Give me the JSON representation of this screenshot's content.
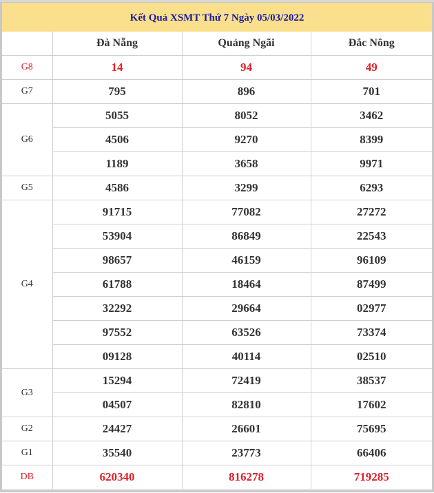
{
  "title": "Kết Quả XSMT Thứ 7 Ngày 05/03/2022",
  "columns": [
    "",
    "Đà Nẵng",
    "Quảng Ngãi",
    "Đắc Nông"
  ],
  "prizes": [
    {
      "label": "G8",
      "highlight": true,
      "rows": [
        [
          "14",
          "94",
          "49"
        ]
      ]
    },
    {
      "label": "G7",
      "rows": [
        [
          "795",
          "896",
          "701"
        ]
      ]
    },
    {
      "label": "G6",
      "rows": [
        [
          "5055",
          "8052",
          "3462"
        ],
        [
          "4506",
          "9270",
          "8399"
        ],
        [
          "1189",
          "3658",
          "9971"
        ]
      ]
    },
    {
      "label": "G5",
      "rows": [
        [
          "4586",
          "3299",
          "6293"
        ]
      ]
    },
    {
      "label": "G4",
      "rows": [
        [
          "91715",
          "77082",
          "27272"
        ],
        [
          "53904",
          "86849",
          "22543"
        ],
        [
          "98657",
          "46159",
          "96109"
        ],
        [
          "61788",
          "18464",
          "87499"
        ],
        [
          "32292",
          "29664",
          "02977"
        ],
        [
          "97552",
          "63526",
          "73374"
        ],
        [
          "09128",
          "40114",
          "02510"
        ]
      ]
    },
    {
      "label": "G3",
      "rows": [
        [
          "15294",
          "72419",
          "38537"
        ],
        [
          "04507",
          "82810",
          "17602"
        ]
      ]
    },
    {
      "label": "G2",
      "rows": [
        [
          "24427",
          "26601",
          "75695"
        ]
      ]
    },
    {
      "label": "G1",
      "rows": [
        [
          "35540",
          "23773",
          "66406"
        ]
      ]
    },
    {
      "label": "DB",
      "highlight": true,
      "rows": [
        [
          "620340",
          "816278",
          "719285"
        ]
      ]
    }
  ],
  "colors": {
    "title_bg": "#fae08c",
    "title_text": "#1a1aa0",
    "highlight": "#e0202a"
  }
}
